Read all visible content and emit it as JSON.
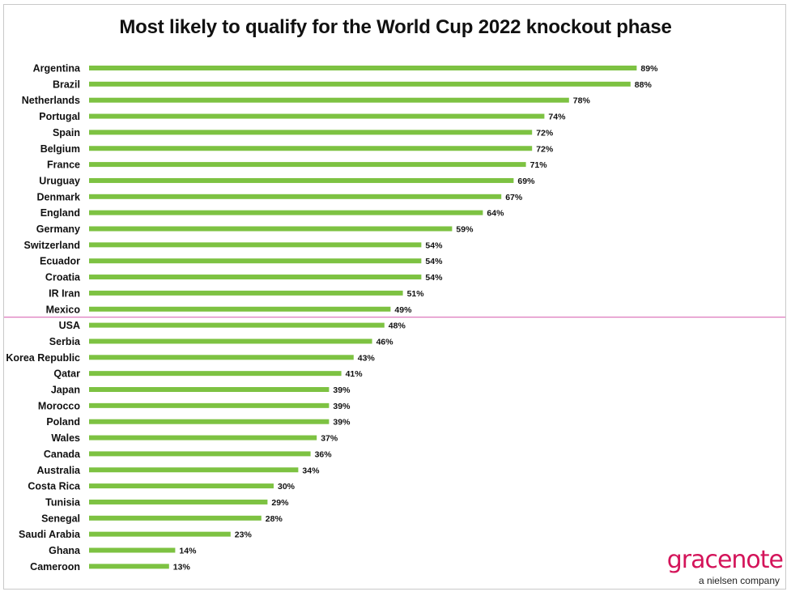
{
  "chart_data": {
    "type": "bar",
    "orientation": "horizontal",
    "title": "Most likely to qualify for the World Cup 2022 knockout phase",
    "categories": [
      "Argentina",
      "Brazil",
      "Netherlands",
      "Portugal",
      "Spain",
      "Belgium",
      "France",
      "Uruguay",
      "Denmark",
      "England",
      "Germany",
      "Switzerland",
      "Ecuador",
      "Croatia",
      "IR Iran",
      "Mexico",
      "USA",
      "Serbia",
      "Korea Republic",
      "Qatar",
      "Japan",
      "Morocco",
      "Poland",
      "Wales",
      "Canada",
      "Australia",
      "Costa Rica",
      "Tunisia",
      "Senegal",
      "Saudi Arabia",
      "Ghana",
      "Cameroon"
    ],
    "values": [
      89,
      88,
      78,
      74,
      72,
      72,
      71,
      69,
      67,
      64,
      59,
      54,
      54,
      54,
      51,
      49,
      48,
      46,
      43,
      41,
      39,
      39,
      39,
      37,
      36,
      34,
      30,
      29,
      28,
      23,
      14,
      13
    ],
    "value_labels": [
      "89%",
      "88%",
      "78%",
      "74%",
      "72%",
      "72%",
      "71%",
      "69%",
      "67%",
      "64%",
      "59%",
      "54%",
      "54%",
      "54%",
      "51%",
      "49%",
      "48%",
      "46%",
      "43%",
      "41%",
      "39%",
      "39%",
      "39%",
      "37%",
      "36%",
      "34%",
      "30%",
      "29%",
      "28%",
      "23%",
      "14%",
      "13%"
    ],
    "bar_color": "#7dc242",
    "divider_color": "#d96ab4",
    "divider_after_category": "Mexico",
    "xlim": [
      0,
      100
    ],
    "grid": false,
    "legend": "none"
  },
  "brand": {
    "name": "gracenote",
    "tagline": "a nielsen company",
    "color": "#d4145a"
  }
}
